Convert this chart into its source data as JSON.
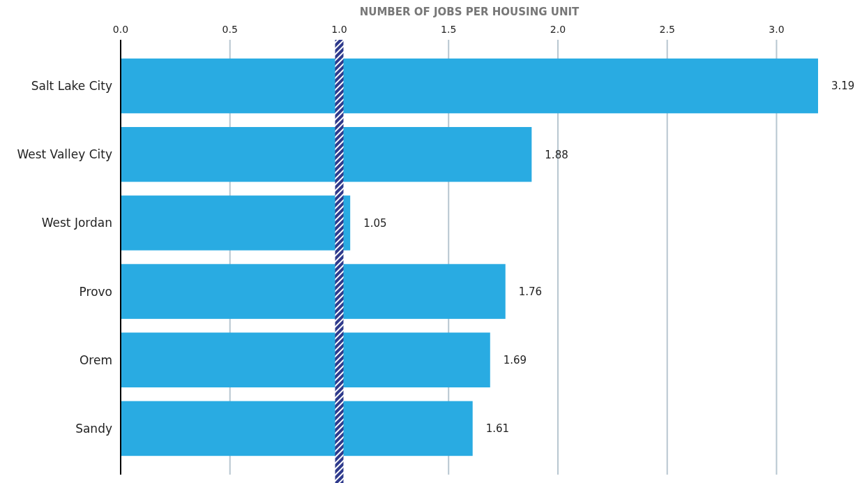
{
  "chart_data": {
    "type": "bar",
    "orientation": "horizontal",
    "xlabel": "NUMBER OF JOBS PER HOUSING UNIT",
    "categories": [
      "Salt Lake City",
      "West Valley City",
      "West Jordan",
      "Provo",
      "Orem",
      "Sandy"
    ],
    "values": [
      3.19,
      1.88,
      1.05,
      1.76,
      1.69,
      1.61
    ],
    "color": "#29abe2",
    "xlim": [
      0,
      3.19
    ],
    "xticks": [
      {
        "value": 0,
        "label": "0.0"
      },
      0.5,
      {
        "value": 1,
        "label": "1.0"
      },
      1.5,
      {
        "value": 2,
        "label": "2.0"
      },
      2.5,
      {
        "value": 3,
        "label": "3.0"
      }
    ],
    "grid": "x",
    "data_labels": true,
    "ref_lines": [
      {
        "axis": "x",
        "value": 1,
        "color": "#2e3a8c"
      }
    ]
  }
}
